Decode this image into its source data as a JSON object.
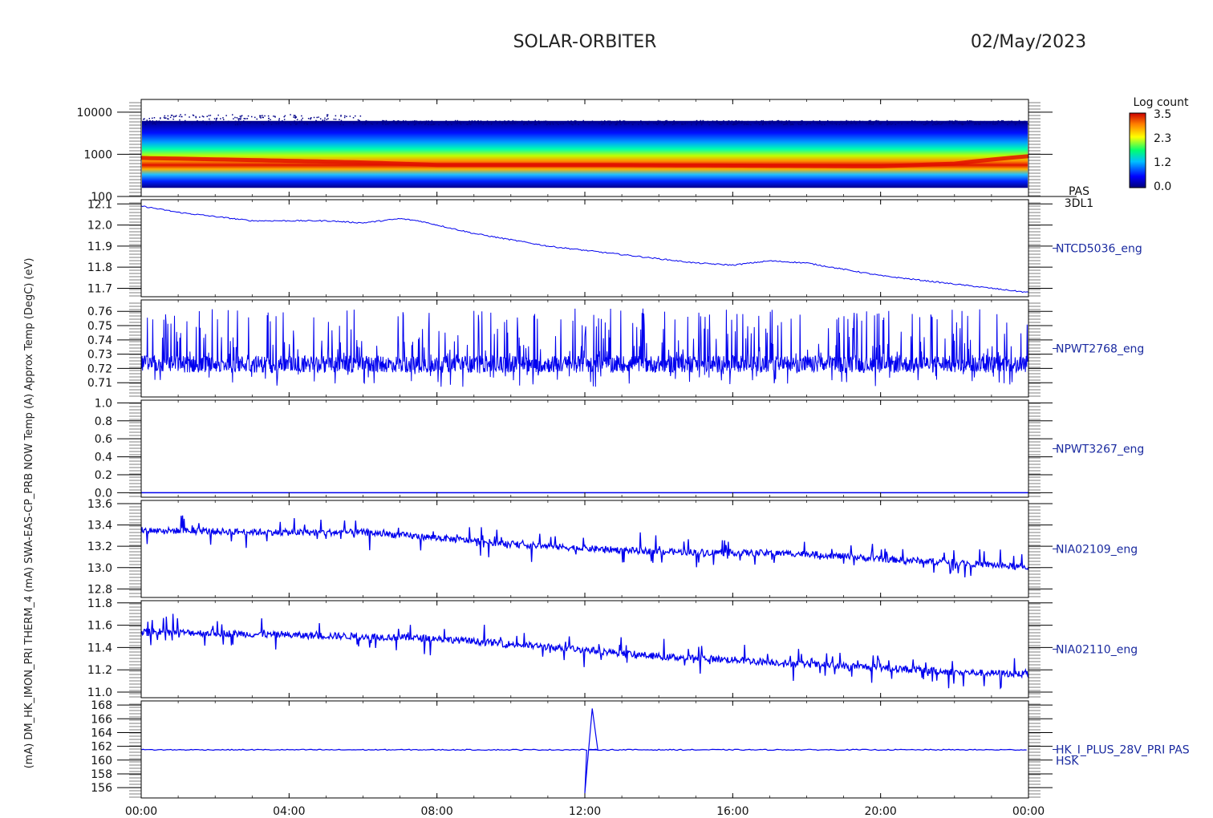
{
  "header": {
    "mission": "SOLAR-ORBITER",
    "date": "02/May/2023"
  },
  "colors": {
    "trace": "#0000ee",
    "axis": "#000000",
    "label": "#1a2aa0"
  },
  "chart_data": [
    {
      "type": "heatmap",
      "panel_label": [
        "PAS",
        "3DL1"
      ],
      "ylabel": "(eV)",
      "yscale": "log",
      "ylim": [
        100,
        20000
      ],
      "yticks": [
        100,
        1000,
        10000
      ],
      "ytick_labels": [
        "100",
        "1000",
        "10000"
      ],
      "colorbar": {
        "title": "Log count",
        "range": [
          0.0,
          3.5
        ],
        "tick_labels": [
          "3.5",
          "2.3",
          "1.2",
          "0.0"
        ]
      },
      "peak_energy_eV_by_hour": [
        {
          "hour": 0,
          "peak": 820
        },
        {
          "hour": 2,
          "peak": 760
        },
        {
          "hour": 4,
          "peak": 700
        },
        {
          "hour": 6,
          "peak": 640
        },
        {
          "hour": 8,
          "peak": 560
        },
        {
          "hour": 12,
          "peak": 560
        },
        {
          "hour": 16,
          "peak": 540
        },
        {
          "hour": 20,
          "peak": 520
        },
        {
          "hour": 22,
          "peak": 600
        },
        {
          "hour": 24,
          "peak": 900
        }
      ]
    },
    {
      "type": "line",
      "panel_label": "NTCD5036_eng",
      "ylabel": "Temp (DegC)",
      "ylim": [
        11.66,
        12.12
      ],
      "yticks": [
        11.7,
        11.8,
        11.9,
        12.0,
        12.1
      ],
      "ytick_labels": [
        "11.7",
        "11.8",
        "11.9",
        "12.0",
        "12.1"
      ],
      "x": [
        0,
        1,
        2,
        3,
        4,
        5,
        6,
        7,
        7.5,
        8,
        9,
        10,
        11,
        12,
        13,
        14,
        15,
        16,
        17,
        18,
        19,
        20,
        21,
        22,
        23,
        24
      ],
      "values": [
        12.09,
        12.06,
        12.04,
        12.02,
        12.02,
        12.02,
        12.01,
        12.03,
        12.02,
        12.0,
        11.96,
        11.93,
        11.9,
        11.88,
        11.86,
        11.84,
        11.82,
        11.81,
        11.83,
        11.82,
        11.79,
        11.76,
        11.74,
        11.72,
        11.7,
        11.68
      ]
    },
    {
      "type": "line",
      "panel_label": "NPWT2768_eng",
      "ylabel": "NOW Temp (A)",
      "ylim": [
        0.7,
        0.768
      ],
      "yticks": [
        0.71,
        0.72,
        0.73,
        0.74,
        0.75,
        0.76
      ],
      "ytick_labels": [
        "0.71",
        "0.72",
        "0.73",
        "0.74",
        "0.75",
        "0.76"
      ],
      "baseline": 0.723,
      "noise_range": [
        0.707,
        0.762
      ]
    },
    {
      "type": "line",
      "panel_label": "NPWT3267_eng",
      "ylabel": "SWA-EAS-CP_PRB",
      "ylim": [
        -0.05,
        1.03
      ],
      "yticks": [
        0.0,
        0.2,
        0.4,
        0.6,
        0.8,
        1.0
      ],
      "ytick_labels": [
        "0.0",
        "0.2",
        "0.4",
        "0.6",
        "0.8",
        "1.0"
      ],
      "baseline": 0.0
    },
    {
      "type": "line",
      "panel_label": "NIA02109_eng",
      "ylabel": "THERM_4 (mA)",
      "ylim": [
        12.72,
        13.63
      ],
      "yticks": [
        12.8,
        13.0,
        13.2,
        13.4,
        13.6
      ],
      "ytick_labels": [
        "12.8",
        "13.0",
        "13.2",
        "13.4",
        "13.6"
      ],
      "x": [
        0,
        2,
        4,
        6,
        8,
        10,
        12,
        14,
        16,
        18,
        20,
        22,
        24
      ],
      "values": [
        13.35,
        13.34,
        13.33,
        13.33,
        13.28,
        13.22,
        13.18,
        13.15,
        13.14,
        13.13,
        13.08,
        13.05,
        13.0
      ]
    },
    {
      "type": "line",
      "panel_label": "NIA02110_eng",
      "ylabel": "IMON_PRI (mA)",
      "ylim": [
        10.95,
        11.82
      ],
      "yticks": [
        11.0,
        11.2,
        11.4,
        11.6,
        11.8
      ],
      "ytick_labels": [
        "11.0",
        "11.2",
        "11.4",
        "11.6",
        "11.8"
      ],
      "x": [
        0,
        2,
        4,
        6,
        8,
        10,
        12,
        14,
        16,
        18,
        20,
        22,
        24
      ],
      "values": [
        11.54,
        11.53,
        11.51,
        11.5,
        11.48,
        11.43,
        11.38,
        11.32,
        11.29,
        11.25,
        11.22,
        11.18,
        11.16
      ]
    },
    {
      "type": "line",
      "panel_label": [
        "HK_I_PLUS_28V_PRI PAS",
        "HSK"
      ],
      "ylabel": "PAS HK (mA)",
      "ylim": [
        154.5,
        168.6
      ],
      "yticks": [
        156,
        158,
        160,
        162,
        164,
        166,
        168
      ],
      "ytick_labels": [
        "156",
        "158",
        "160",
        "162",
        "164",
        "166",
        "168"
      ],
      "baseline": 161.5,
      "spike": {
        "x": 12.05,
        "min": 155.2,
        "max": 167.5
      }
    }
  ],
  "xaxis": {
    "range": [
      0,
      24
    ],
    "tick_labels": [
      "00:00",
      "04:00",
      "08:00",
      "12:00",
      "16:00",
      "20:00",
      "00:00"
    ]
  },
  "ylabel_overlap": "(mA) DM_HK_IMON_PRI THERM_4 (mA) SWA-EAS-CP_PRB NOW Temp (A) Approx Temp (DegC) (eV)"
}
